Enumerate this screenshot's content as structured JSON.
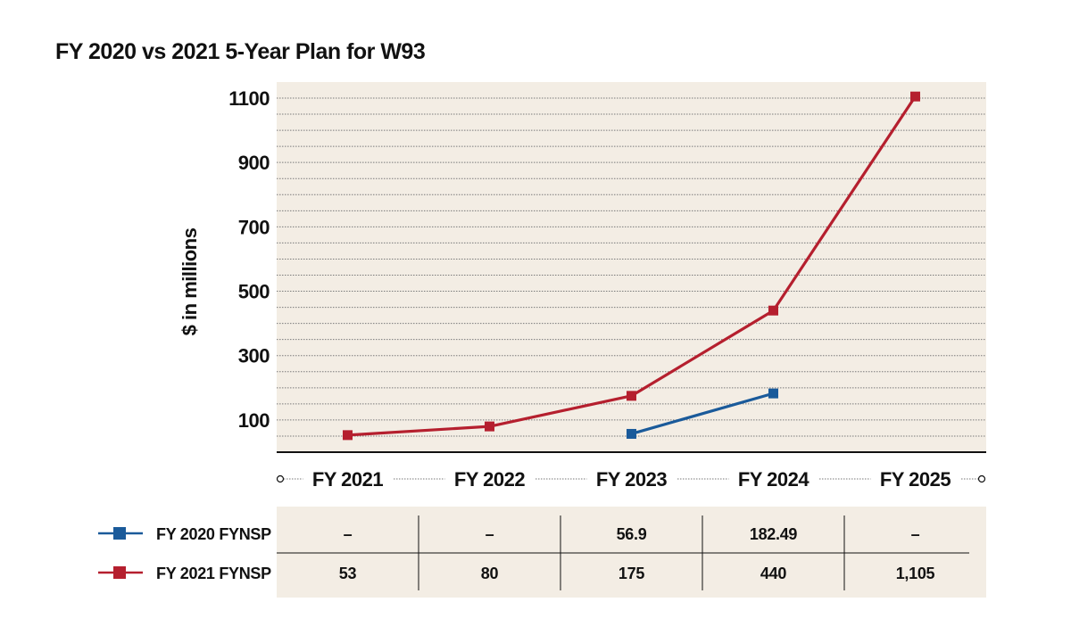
{
  "chart_data": {
    "type": "line",
    "title": "FY 2020 vs 2021 5-Year Plan for W93",
    "ylabel": "$ in millions",
    "xlabel": "",
    "categories": [
      "FY 2021",
      "FY 2022",
      "FY 2023",
      "FY 2024",
      "FY 2025"
    ],
    "ylim": [
      0,
      1105
    ],
    "yticks": [
      100,
      300,
      500,
      700,
      900,
      1100
    ],
    "grid": true,
    "series": [
      {
        "name": "FY 2020 FYNSP",
        "color": "#1a5a9a",
        "values": [
          null,
          null,
          56.9,
          182.49,
          null
        ],
        "labels": [
          "–",
          "–",
          "56.9",
          "182.49",
          "–"
        ]
      },
      {
        "name": "FY 2021 FYNSP",
        "color": "#b51f2e",
        "values": [
          53,
          80,
          175,
          440,
          1105
        ],
        "labels": [
          "53",
          "80",
          "175",
          "440",
          "1,105"
        ]
      }
    ]
  },
  "colors": {
    "plot_bg": "#f3ede4",
    "table_bg": "#f3ede4"
  }
}
